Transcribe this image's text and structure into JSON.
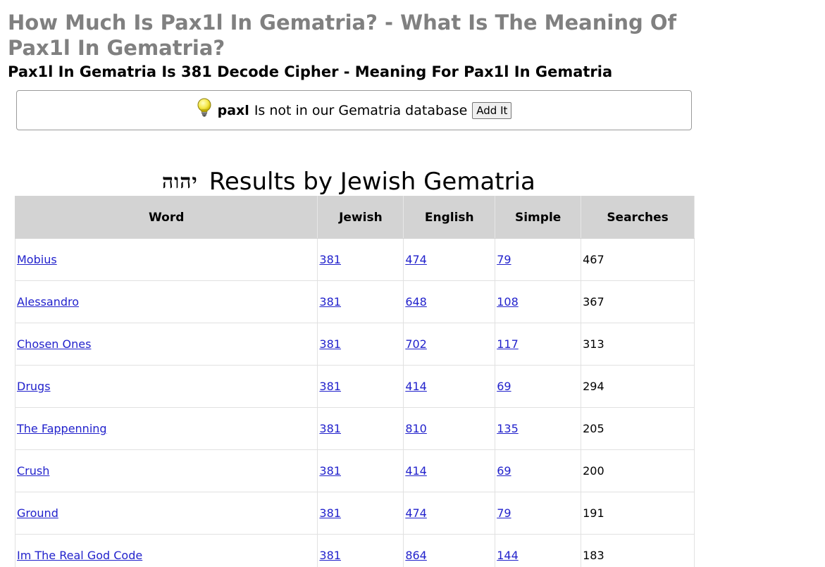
{
  "page": {
    "title": "How Much Is Pax1l In Gematria? - What Is The Meaning Of Pax1l In Gematria?",
    "subtitle": "Pax1l In Gematria Is 381 Decode Cipher - Meaning For Pax1l In Gematria"
  },
  "notice": {
    "icon": "lightbulb-icon",
    "word": "paxl",
    "message": "Is not in our Gematria database",
    "button_label": "Add It"
  },
  "results": {
    "hebrew_label": "יהוה",
    "title": "Results by Jewish Gematria",
    "columns": [
      "Word",
      "Jewish",
      "English",
      "Simple",
      "Searches"
    ],
    "rows": [
      {
        "word": "Mobius",
        "jewish": "381",
        "english": "474",
        "simple": "79",
        "searches": "467"
      },
      {
        "word": "Alessandro",
        "jewish": "381",
        "english": "648",
        "simple": "108",
        "searches": "367"
      },
      {
        "word": "Chosen Ones",
        "jewish": "381",
        "english": "702",
        "simple": "117",
        "searches": "313"
      },
      {
        "word": "Drugs",
        "jewish": "381",
        "english": "414",
        "simple": "69",
        "searches": "294"
      },
      {
        "word": "The Fappenning",
        "jewish": "381",
        "english": "810",
        "simple": "135",
        "searches": "205"
      },
      {
        "word": "Crush",
        "jewish": "381",
        "english": "414",
        "simple": "69",
        "searches": "200"
      },
      {
        "word": "Ground",
        "jewish": "381",
        "english": "474",
        "simple": "79",
        "searches": "191"
      },
      {
        "word": "Im The Real God Code",
        "jewish": "381",
        "english": "864",
        "simple": "144",
        "searches": "183"
      }
    ]
  },
  "colors": {
    "title_gray": "#808080",
    "header_bg": "#d3d3d3",
    "link": "#2222cc"
  }
}
